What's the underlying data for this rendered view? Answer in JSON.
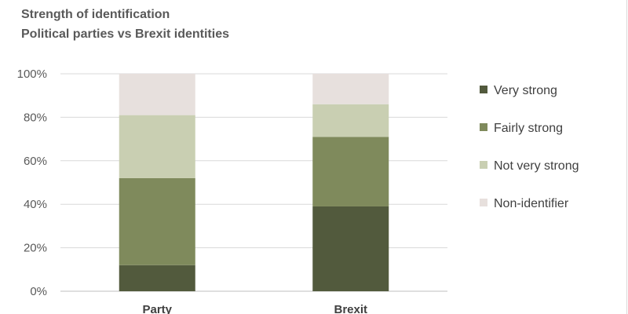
{
  "chart_data": {
    "type": "bar",
    "stacked": true,
    "title": "Strength of identification",
    "subtitle": "Political parties vs Brexit identities",
    "categories": [
      "Party",
      "Brexit"
    ],
    "series": [
      {
        "name": "Very strong",
        "color": "#525a3d",
        "values": [
          12,
          39
        ]
      },
      {
        "name": "Fairly strong",
        "color": "#7f8a5c",
        "values": [
          40,
          32
        ]
      },
      {
        "name": "Not very strong",
        "color": "#c9cfb2",
        "values": [
          29,
          15
        ]
      },
      {
        "name": "Non-identifier",
        "color": "#e7e0dd",
        "values": [
          19,
          14
        ]
      }
    ],
    "y_ticks": [
      "0%",
      "20%",
      "40%",
      "60%",
      "80%",
      "100%"
    ],
    "ylim": [
      0,
      100
    ],
    "grid": true,
    "legend_position": "right"
  }
}
